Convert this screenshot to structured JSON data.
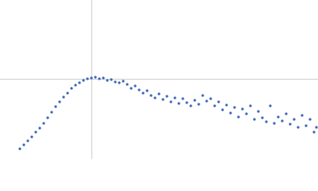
{
  "chart_data": {
    "type": "scatter",
    "color": "#3a66b8",
    "guide_color": "#cccccc",
    "xlim": [
      0,
      6
    ],
    "ylim": [
      0,
      2.2
    ],
    "reference_x": 1.732,
    "reference_y": 1.104,
    "x": [
      0.375,
      0.45,
      0.525,
      0.6,
      0.675,
      0.75,
      0.825,
      0.9,
      0.975,
      1.05,
      1.125,
      1.2,
      1.275,
      1.35,
      1.425,
      1.5,
      1.575,
      1.65,
      1.725,
      1.8,
      1.875,
      1.95,
      2.025,
      2.1,
      2.175,
      2.25,
      2.325,
      2.4,
      2.475,
      2.55,
      2.625,
      2.7,
      2.775,
      2.85,
      2.925,
      3.0,
      3.075,
      3.15,
      3.225,
      3.3,
      3.375,
      3.45,
      3.525,
      3.6,
      3.675,
      3.75,
      3.825,
      3.9,
      3.975,
      4.05,
      4.125,
      4.2,
      4.275,
      4.35,
      4.425,
      4.5,
      4.575,
      4.65,
      4.725,
      4.8,
      4.875,
      4.95,
      5.025,
      5.1,
      5.175,
      5.25,
      5.325,
      5.4,
      5.475,
      5.55,
      5.625,
      5.7,
      5.775,
      5.85,
      5.925,
      5.97
    ],
    "values": [
      0.143,
      0.198,
      0.253,
      0.308,
      0.374,
      0.429,
      0.495,
      0.572,
      0.649,
      0.726,
      0.792,
      0.858,
      0.913,
      0.979,
      1.023,
      1.056,
      1.089,
      1.111,
      1.122,
      1.133,
      1.111,
      1.122,
      1.089,
      1.1,
      1.067,
      1.056,
      1.078,
      1.034,
      0.979,
      1.012,
      0.957,
      0.913,
      0.946,
      0.88,
      0.847,
      0.902,
      0.825,
      0.869,
      0.792,
      0.847,
      0.77,
      0.836,
      0.781,
      0.737,
      0.814,
      0.759,
      0.88,
      0.803,
      0.836,
      0.737,
      0.792,
      0.682,
      0.748,
      0.638,
      0.715,
      0.583,
      0.693,
      0.627,
      0.737,
      0.55,
      0.66,
      0.572,
      0.517,
      0.737,
      0.495,
      0.583,
      0.528,
      0.627,
      0.484,
      0.55,
      0.44,
      0.605,
      0.462,
      0.55,
      0.374,
      0.44
    ]
  }
}
